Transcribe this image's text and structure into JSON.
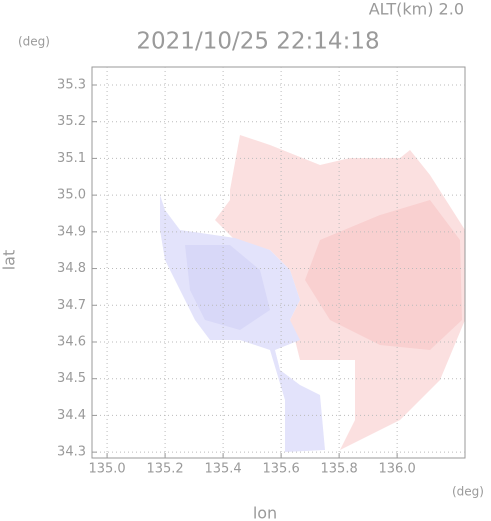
{
  "chart_data": {
    "type": "map",
    "title": "2021/10/25 22:14:18",
    "subtitle": "ALT(km) 2.0",
    "y_unit": "(deg)",
    "x_unit": "(deg)",
    "xlabel": "lon",
    "ylabel": "lat",
    "xlim": [
      134.948,
      136.234
    ],
    "ylim": [
      34.284,
      35.349
    ],
    "xticks": [
      {
        "value": 135,
        "label": "135.0"
      },
      135.2,
      135.4,
      135.6,
      135.8,
      {
        "value": 136,
        "label": "136.0"
      }
    ],
    "yticks": [
      34.3,
      34.4,
      34.5,
      34.6,
      34.7,
      34.8,
      34.9,
      {
        "value": 35,
        "label": "35.0"
      },
      35.1,
      35.2,
      35.3
    ],
    "grid": true
  }
}
